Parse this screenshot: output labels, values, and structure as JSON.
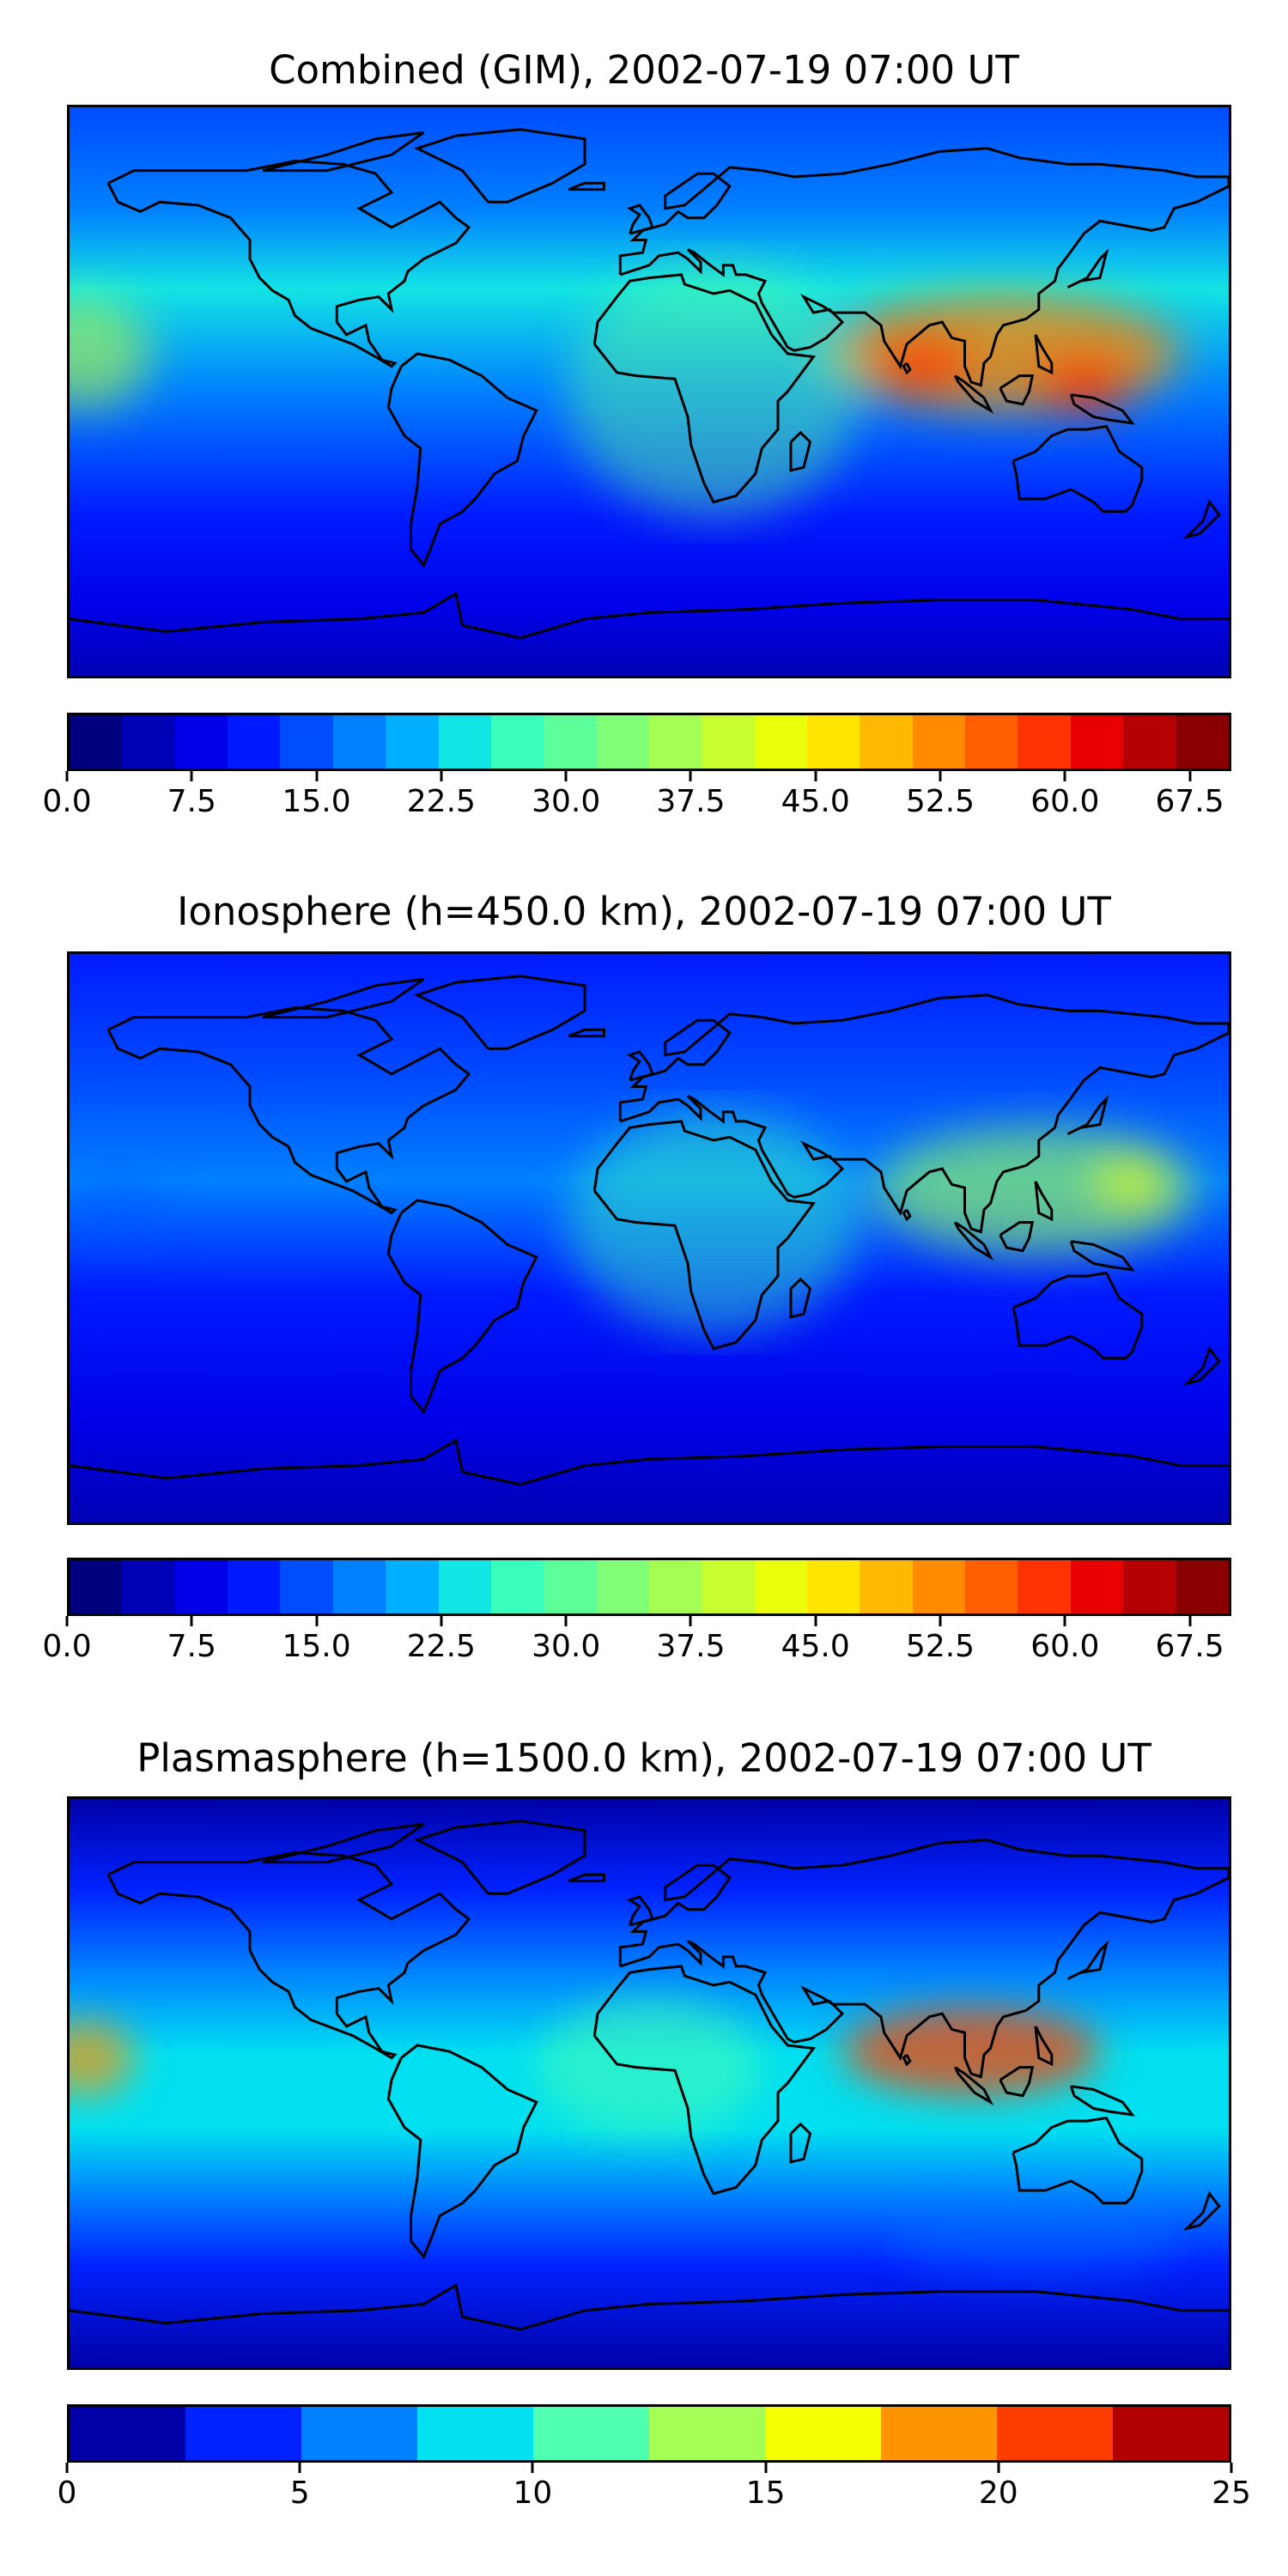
{
  "panels": [
    {
      "id": "combined",
      "title": "Combined (GIM), 2002-07-19 07:00 UT",
      "colorbar": {
        "colors": [
          "#00007f",
          "#0000b4",
          "#0000e8",
          "#001aff",
          "#004cff",
          "#0080ff",
          "#00b0ff",
          "#13e4e4",
          "#3affbc",
          "#5dff99",
          "#80ff77",
          "#a3ff54",
          "#c8ff2f",
          "#eaff0c",
          "#ffe500",
          "#ffb900",
          "#ff8c00",
          "#ff5f00",
          "#ff3300",
          "#e80000",
          "#b40000",
          "#8a0000"
        ],
        "ticks": [
          "0.0",
          "7.5",
          "15.0",
          "22.5",
          "30.0",
          "37.5",
          "45.0",
          "52.5",
          "60.0",
          "67.5"
        ],
        "tick_values": [
          0,
          7.5,
          15,
          22.5,
          30,
          37.5,
          45,
          52.5,
          60,
          67.5
        ],
        "range": [
          0,
          70
        ]
      },
      "field": [
        {
          "lon": 110,
          "lat": 12,
          "rx": 55,
          "ry": 18,
          "level": 0.8,
          "color": "#ff8c00"
        },
        {
          "lon": 85,
          "lat": 8,
          "rx": 15,
          "ry": 8,
          "level": 0.95,
          "color": "#ff3300"
        },
        {
          "lon": 135,
          "lat": 2,
          "rx": 15,
          "ry": 8,
          "level": 0.95,
          "color": "#ff3300"
        },
        {
          "lon": -175,
          "lat": 12,
          "rx": 20,
          "ry": 18,
          "level": 0.55,
          "color": "#c8ff2f"
        },
        {
          "lon": 20,
          "lat": 0,
          "rx": 45,
          "ry": 40,
          "level": 0.45,
          "color": "#5dff99"
        }
      ]
    },
    {
      "id": "ionosphere",
      "title": "Ionosphere  (h=450.0 km), 2002-07-19 07:00 UT",
      "colorbar": {
        "colors": [
          "#00007f",
          "#0000b4",
          "#0000e8",
          "#001aff",
          "#004cff",
          "#0080ff",
          "#00b0ff",
          "#13e4e4",
          "#3affbc",
          "#5dff99",
          "#80ff77",
          "#a3ff54",
          "#c8ff2f",
          "#eaff0c",
          "#ffe500",
          "#ffb900",
          "#ff8c00",
          "#ff5f00",
          "#ff3300",
          "#e80000",
          "#b40000",
          "#8a0000"
        ],
        "ticks": [
          "0.0",
          "7.5",
          "15.0",
          "22.5",
          "30.0",
          "37.5",
          "45.0",
          "52.5",
          "60.0",
          "67.5"
        ],
        "tick_values": [
          0,
          7.5,
          15,
          22.5,
          30,
          37.5,
          45,
          52.5,
          60,
          67.5
        ],
        "range": [
          0,
          70
        ]
      },
      "field": [
        {
          "lon": 120,
          "lat": 15,
          "rx": 50,
          "ry": 20,
          "level": 0.6,
          "color": "#a3ff54"
        },
        {
          "lon": 150,
          "lat": 18,
          "rx": 12,
          "ry": 8,
          "level": 0.75,
          "color": "#eaff0c"
        },
        {
          "lon": 20,
          "lat": 5,
          "rx": 45,
          "ry": 35,
          "level": 0.45,
          "color": "#3affbc"
        },
        {
          "lon": -165,
          "lat": 10,
          "rx": 15,
          "ry": 10,
          "level": 0.35,
          "color": "#004cff"
        }
      ]
    },
    {
      "id": "plasmasphere",
      "title": "Plasmasphere (h=1500.0 km), 2002-07-19 07:00 UT",
      "colorbar": {
        "colors": [
          "#0000a8",
          "#0022ff",
          "#0080ff",
          "#00e0f0",
          "#4dffae",
          "#a3ff54",
          "#f4ff00",
          "#ff9400",
          "#ff3d00",
          "#b00000"
        ],
        "ticks": [
          "0",
          "5",
          "10",
          "15",
          "20",
          "25"
        ],
        "tick_values": [
          0,
          5,
          10,
          15,
          20,
          25
        ],
        "range": [
          0,
          25
        ]
      },
      "field": [
        {
          "lon": 100,
          "lat": 10,
          "rx": 40,
          "ry": 14,
          "level": 0.75,
          "color": "#ff3d00"
        },
        {
          "lon": -175,
          "lat": 8,
          "rx": 15,
          "ry": 12,
          "level": 0.7,
          "color": "#ff9400"
        },
        {
          "lon": 0,
          "lat": 5,
          "rx": 35,
          "ry": 22,
          "level": 0.5,
          "color": "#4dffae"
        },
        {
          "lon": 120,
          "lat": -50,
          "rx": 45,
          "ry": 12,
          "level": 0.3,
          "color": "#0080ff"
        }
      ]
    }
  ]
}
